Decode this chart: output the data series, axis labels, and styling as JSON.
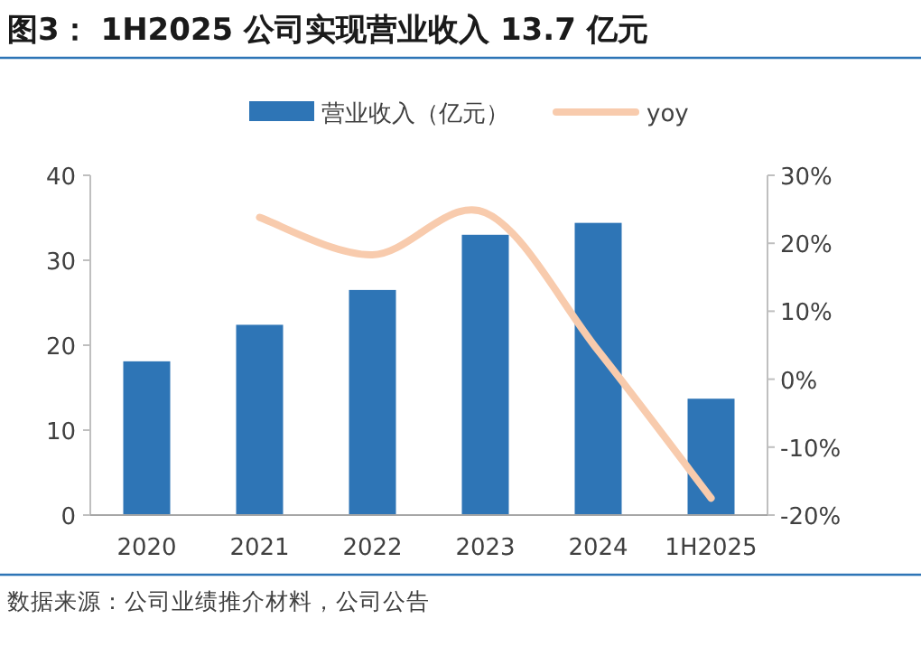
{
  "chart_data": {
    "type": "bar",
    "title": "图3： 1H2025 公司实现营业收入 13.7 亿元",
    "categories": [
      "2020",
      "2021",
      "2022",
      "2023",
      "2024",
      "1H2025"
    ],
    "series": [
      {
        "name": "营业收入（亿元）",
        "color": "#2e75b6",
        "values": [
          18.1,
          22.4,
          26.5,
          33.0,
          34.4,
          13.7
        ]
      },
      {
        "name": "yoy",
        "type": "line",
        "axis": "y2",
        "color": "#f8cbad",
        "values": [
          null,
          23.8,
          18.3,
          24.5,
          4.2,
          -17.5
        ]
      }
    ],
    "ylim": [
      0,
      40
    ],
    "yticks": [
      0,
      10,
      20,
      30,
      40
    ],
    "y2lim": [
      -20,
      30
    ],
    "y2ticks": [
      {
        "value": -20,
        "label": "-20%"
      },
      {
        "value": -10,
        "label": "-10%"
      },
      {
        "value": 0,
        "label": "0%"
      },
      {
        "value": 10,
        "label": "10%"
      },
      {
        "value": 20,
        "label": "20%"
      },
      {
        "value": 30,
        "label": "30%"
      }
    ],
    "legend": "top",
    "grid": false,
    "annotations": [
      "数据来源：公司业绩推介材料，公司公告"
    ]
  }
}
